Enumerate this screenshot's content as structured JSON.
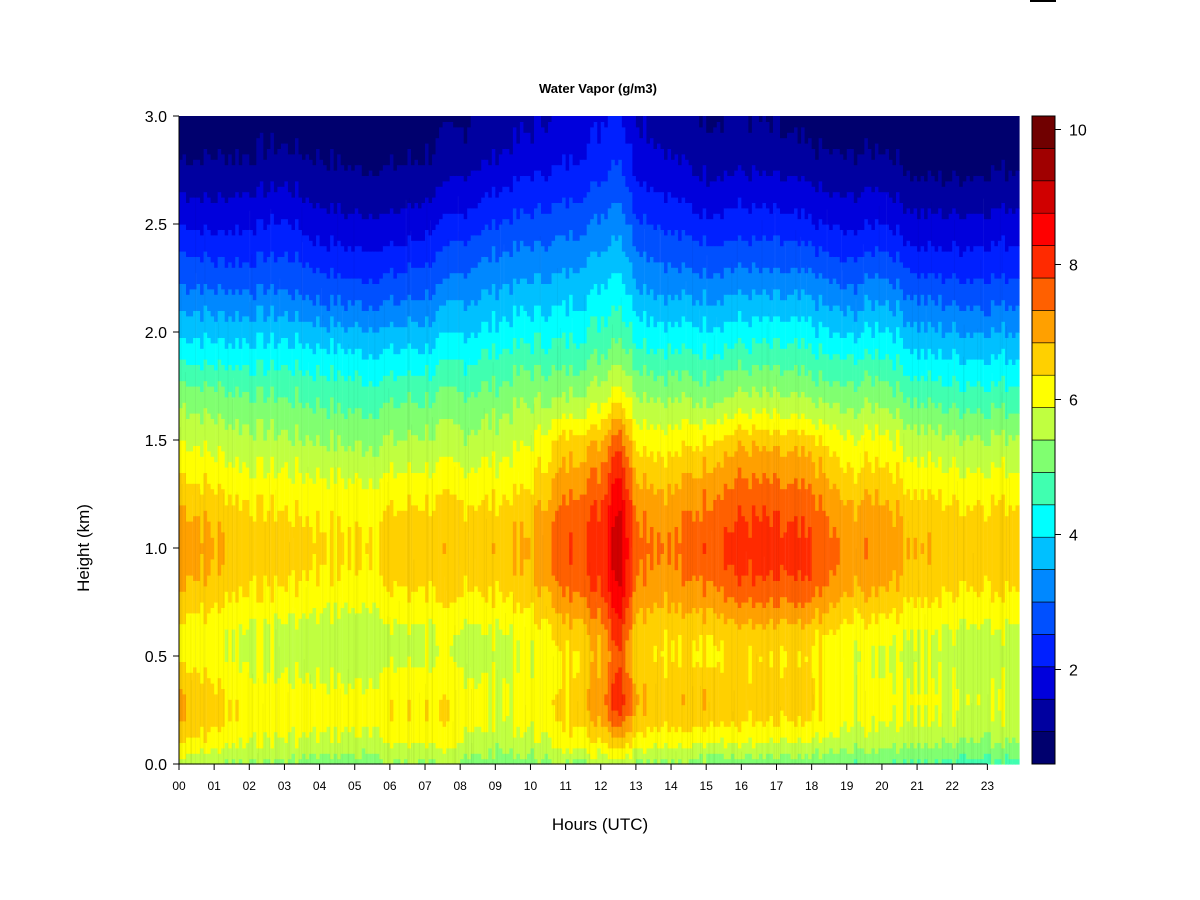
{
  "chart_data": {
    "type": "heatmap",
    "title": "Water Vapor (g/m3)",
    "xlabel": "Hours (UTC)",
    "ylabel": "Height (km)",
    "xlim": [
      0,
      23.9
    ],
    "ylim": [
      0.0,
      3.0
    ],
    "x_ticks": [
      "00",
      "01",
      "02",
      "03",
      "04",
      "05",
      "06",
      "07",
      "08",
      "09",
      "10",
      "11",
      "12",
      "13",
      "14",
      "15",
      "16",
      "17",
      "18",
      "19",
      "20",
      "21",
      "22",
      "23"
    ],
    "y_ticks": [
      "0.0",
      "0.5",
      "1.0",
      "1.5",
      "2.0",
      "2.5",
      "3.0"
    ],
    "colorbar": {
      "range": [
        0.6,
        10.2
      ],
      "ticks": [
        "2",
        "4",
        "6",
        "8",
        "10"
      ],
      "levels": [
        "#00006e",
        "#0000a0",
        "#0000dc",
        "#0020ff",
        "#0050ff",
        "#0088ff",
        "#00c0ff",
        "#00ffff",
        "#40ffb0",
        "#80ff70",
        "#c0ff40",
        "#ffff00",
        "#ffd000",
        "#ffa000",
        "#ff6000",
        "#ff2a00",
        "#ff0000",
        "#d00000",
        "#a00000",
        "#700000"
      ]
    },
    "heights_km": [
      0.0,
      0.1,
      0.2,
      0.3,
      0.4,
      0.5,
      0.6,
      0.7,
      0.8,
      0.9,
      1.0,
      1.1,
      1.2,
      1.3,
      1.4,
      1.5,
      1.6,
      1.7,
      1.8,
      1.9,
      2.0,
      2.1,
      2.2,
      2.3,
      2.4,
      2.5,
      2.6,
      2.7,
      2.8,
      2.9,
      3.0
    ],
    "profiles": [
      {
        "hour": 0,
        "values": [
          5.6,
          6.4,
          6.9,
          7.0,
          6.7,
          6.3,
          6.2,
          6.5,
          6.9,
          7.1,
          7.2,
          7.1,
          6.9,
          6.5,
          6.2,
          5.9,
          5.6,
          5.3,
          4.8,
          4.3,
          3.9,
          3.5,
          3.1,
          2.8,
          2.4,
          2.0,
          1.7,
          1.4,
          1.1,
          0.9,
          0.8
        ]
      },
      {
        "hour": 1,
        "values": [
          5.4,
          6.1,
          6.5,
          6.5,
          6.3,
          6.0,
          6.0,
          6.3,
          6.6,
          6.8,
          6.9,
          6.8,
          6.6,
          6.3,
          6.0,
          5.7,
          5.4,
          5.1,
          4.7,
          4.2,
          3.8,
          3.4,
          3.0,
          2.6,
          2.3,
          1.9,
          1.6,
          1.3,
          1.1,
          0.9,
          0.8
        ]
      },
      {
        "hour": 2,
        "values": [
          5.4,
          5.9,
          6.2,
          6.2,
          6.0,
          5.8,
          5.8,
          6.1,
          6.4,
          6.6,
          6.7,
          6.6,
          6.4,
          6.1,
          5.8,
          5.6,
          5.3,
          5.0,
          4.6,
          4.2,
          3.8,
          3.4,
          3.0,
          2.6,
          2.3,
          2.0,
          1.7,
          1.4,
          1.1,
          1.0,
          0.9
        ]
      },
      {
        "hour": 3,
        "values": [
          5.3,
          5.8,
          6.1,
          6.1,
          5.9,
          5.7,
          5.7,
          6.0,
          6.3,
          6.5,
          6.6,
          6.5,
          6.3,
          6.0,
          5.8,
          5.5,
          5.2,
          4.9,
          4.6,
          4.2,
          3.8,
          3.4,
          3.0,
          2.7,
          2.4,
          2.1,
          1.8,
          1.5,
          1.2,
          1.0,
          0.9
        ]
      },
      {
        "hour": 4,
        "values": [
          5.2,
          5.8,
          6.1,
          6.1,
          5.9,
          5.6,
          5.6,
          5.9,
          6.2,
          6.4,
          6.5,
          6.4,
          6.2,
          6.0,
          5.7,
          5.4,
          5.1,
          4.8,
          4.5,
          4.1,
          3.7,
          3.2,
          2.8,
          2.5,
          2.1,
          1.8,
          1.5,
          1.3,
          1.1,
          0.9,
          0.8
        ]
      },
      {
        "hour": 5,
        "values": [
          5.1,
          5.7,
          6.0,
          6.0,
          5.8,
          5.5,
          5.5,
          5.8,
          6.1,
          6.3,
          6.4,
          6.3,
          6.1,
          5.9,
          5.6,
          5.3,
          5.0,
          4.7,
          4.4,
          4.0,
          3.6,
          3.1,
          2.7,
          2.3,
          2.0,
          1.7,
          1.4,
          1.2,
          1.0,
          0.9,
          0.8
        ]
      },
      {
        "hour": 6,
        "values": [
          5.3,
          5.9,
          6.2,
          6.2,
          6.0,
          5.7,
          5.7,
          6.0,
          6.3,
          6.5,
          6.6,
          6.5,
          6.3,
          6.0,
          5.7,
          5.4,
          5.1,
          4.8,
          4.4,
          4.0,
          3.6,
          3.1,
          2.7,
          2.4,
          2.0,
          1.7,
          1.4,
          1.2,
          1.0,
          0.9,
          0.8
        ]
      },
      {
        "hour": 7,
        "values": [
          5.4,
          6.0,
          6.3,
          6.3,
          6.1,
          5.8,
          5.8,
          6.1,
          6.4,
          6.6,
          6.7,
          6.6,
          6.4,
          6.1,
          5.8,
          5.5,
          5.2,
          4.9,
          4.5,
          4.1,
          3.7,
          3.3,
          2.9,
          2.6,
          2.2,
          1.9,
          1.6,
          1.3,
          1.1,
          1.0,
          0.9
        ]
      },
      {
        "hour": 8,
        "values": [
          5.3,
          5.9,
          6.2,
          6.2,
          6.0,
          5.7,
          5.8,
          6.1,
          6.4,
          6.6,
          6.7,
          6.6,
          6.4,
          6.1,
          5.8,
          5.5,
          5.3,
          5.0,
          4.6,
          4.3,
          3.9,
          3.6,
          3.2,
          2.9,
          2.6,
          2.2,
          1.9,
          1.6,
          1.3,
          1.1,
          1.0
        ]
      },
      {
        "hour": 9,
        "values": [
          5.1,
          5.6,
          5.8,
          5.9,
          5.8,
          5.7,
          5.8,
          6.1,
          6.4,
          6.6,
          6.7,
          6.6,
          6.4,
          6.1,
          5.9,
          5.6,
          5.4,
          5.1,
          4.8,
          4.5,
          4.1,
          3.8,
          3.5,
          3.2,
          2.9,
          2.5,
          2.2,
          1.9,
          1.6,
          1.4,
          1.3
        ]
      },
      {
        "hour": 10,
        "values": [
          5.2,
          5.7,
          6.0,
          6.1,
          6.0,
          5.9,
          6.0,
          6.3,
          6.6,
          6.8,
          6.9,
          6.8,
          6.6,
          6.3,
          6.1,
          5.8,
          5.6,
          5.3,
          5.0,
          4.6,
          4.3,
          3.9,
          3.6,
          3.3,
          3.0,
          2.7,
          2.4,
          2.1,
          1.8,
          1.6,
          1.5
        ]
      },
      {
        "hour": 11,
        "values": [
          5.4,
          6.1,
          6.4,
          6.4,
          6.3,
          6.3,
          6.5,
          6.9,
          7.3,
          7.6,
          7.7,
          7.6,
          7.4,
          7.1,
          6.8,
          6.5,
          5.9,
          5.4,
          5.0,
          4.6,
          4.3,
          4.0,
          3.7,
          3.4,
          3.1,
          2.8,
          2.5,
          2.2,
          2.0,
          1.8,
          1.7
        ]
      },
      {
        "hour": 12,
        "values": [
          5.5,
          6.3,
          6.9,
          7.2,
          7.0,
          6.8,
          7.0,
          7.4,
          7.8,
          8.0,
          8.1,
          8.0,
          7.8,
          7.5,
          7.2,
          6.8,
          6.2,
          5.7,
          5.3,
          4.9,
          4.6,
          4.3,
          4.0,
          3.7,
          3.4,
          3.1,
          2.8,
          2.5,
          2.3,
          2.1,
          2.0
        ]
      },
      {
        "hour": 12.5,
        "values": [
          5.8,
          6.8,
          7.8,
          8.4,
          8.1,
          7.9,
          8.2,
          8.6,
          8.9,
          9.1,
          9.2,
          9.1,
          8.9,
          8.6,
          8.3,
          7.8,
          7.1,
          6.3,
          5.8,
          5.3,
          4.9,
          4.6,
          4.3,
          4.0,
          3.7,
          3.4,
          3.1,
          2.9,
          2.6,
          2.4,
          2.2
        ]
      },
      {
        "hour": 13,
        "values": [
          5.4,
          6.2,
          6.8,
          7.0,
          6.8,
          6.6,
          6.7,
          7.0,
          7.3,
          7.5,
          7.6,
          7.5,
          7.3,
          7.0,
          6.7,
          6.3,
          5.9,
          5.5,
          5.1,
          4.7,
          4.3,
          4.0,
          3.6,
          3.3,
          3.0,
          2.7,
          2.4,
          2.1,
          1.9,
          1.7,
          1.6
        ]
      },
      {
        "hour": 14,
        "values": [
          5.3,
          6.0,
          6.5,
          6.7,
          6.5,
          6.3,
          6.4,
          6.7,
          7.0,
          7.2,
          7.3,
          7.2,
          7.0,
          6.7,
          6.4,
          6.1,
          5.7,
          5.3,
          4.9,
          4.5,
          4.1,
          3.7,
          3.3,
          3.0,
          2.7,
          2.4,
          2.1,
          1.8,
          1.6,
          1.4,
          1.3
        ]
      },
      {
        "hour": 15,
        "values": [
          5.2,
          6.0,
          6.6,
          6.8,
          6.6,
          6.4,
          6.5,
          6.9,
          7.3,
          7.6,
          7.7,
          7.6,
          7.4,
          7.1,
          6.8,
          6.4,
          5.8,
          5.3,
          4.9,
          4.5,
          4.1,
          3.7,
          3.3,
          2.9,
          2.6,
          2.2,
          1.9,
          1.6,
          1.4,
          1.2,
          1.1
        ]
      },
      {
        "hour": 16,
        "values": [
          5.1,
          5.9,
          6.4,
          6.6,
          6.5,
          6.4,
          6.6,
          7.1,
          7.6,
          7.9,
          8.0,
          7.9,
          7.7,
          7.4,
          7.1,
          6.7,
          6.0,
          5.5,
          5.1,
          4.6,
          4.2,
          3.8,
          3.4,
          3.0,
          2.6,
          2.3,
          2.0,
          1.7,
          1.4,
          1.2,
          1.1
        ]
      },
      {
        "hour": 17,
        "values": [
          5.0,
          5.8,
          6.3,
          6.5,
          6.4,
          6.3,
          6.5,
          7.0,
          7.5,
          7.8,
          7.9,
          7.8,
          7.6,
          7.3,
          7.0,
          6.6,
          5.9,
          5.4,
          5.0,
          4.6,
          4.2,
          3.7,
          3.3,
          2.9,
          2.6,
          2.2,
          1.9,
          1.6,
          1.3,
          1.1,
          1.0
        ]
      },
      {
        "hour": 18,
        "values": [
          5.0,
          5.8,
          6.3,
          6.5,
          6.4,
          6.3,
          6.5,
          7.0,
          7.5,
          7.8,
          7.8,
          7.7,
          7.5,
          7.2,
          6.9,
          6.5,
          5.8,
          5.3,
          4.9,
          4.5,
          4.1,
          3.7,
          3.3,
          2.9,
          2.5,
          2.1,
          1.8,
          1.5,
          1.2,
          1.0,
          0.9
        ]
      },
      {
        "hour": 19,
        "values": [
          5.0,
          5.6,
          5.9,
          6.0,
          6.0,
          5.9,
          6.1,
          6.4,
          6.8,
          7.0,
          7.1,
          7.0,
          6.8,
          6.5,
          6.2,
          5.9,
          5.5,
          5.1,
          4.7,
          4.3,
          3.8,
          3.4,
          3.0,
          2.6,
          2.2,
          1.9,
          1.6,
          1.3,
          1.1,
          0.9,
          0.8
        ]
      },
      {
        "hour": 20,
        "values": [
          5.0,
          5.6,
          6.0,
          6.1,
          6.0,
          5.9,
          6.1,
          6.5,
          6.9,
          7.2,
          7.3,
          7.2,
          7.0,
          6.7,
          6.4,
          6.1,
          5.7,
          5.3,
          4.9,
          4.5,
          4.1,
          3.7,
          3.3,
          2.9,
          2.5,
          2.1,
          1.8,
          1.5,
          1.2,
          1.0,
          0.9
        ]
      },
      {
        "hour": 21,
        "values": [
          4.9,
          5.5,
          5.9,
          6.0,
          5.9,
          5.8,
          5.9,
          6.2,
          6.5,
          6.7,
          6.8,
          6.7,
          6.5,
          6.2,
          5.9,
          5.6,
          5.2,
          4.8,
          4.4,
          4.0,
          3.6,
          3.2,
          2.8,
          2.4,
          2.0,
          1.7,
          1.4,
          1.1,
          0.9,
          0.8,
          0.7
        ]
      },
      {
        "hour": 22,
        "values": [
          4.8,
          5.4,
          5.8,
          5.9,
          5.8,
          5.7,
          5.8,
          6.1,
          6.4,
          6.6,
          6.7,
          6.6,
          6.4,
          6.1,
          5.8,
          5.5,
          5.1,
          4.7,
          4.3,
          3.9,
          3.5,
          3.1,
          2.7,
          2.3,
          2.0,
          1.7,
          1.4,
          1.1,
          0.9,
          0.8,
          0.7
        ]
      },
      {
        "hour": 23.9,
        "values": [
          4.8,
          5.4,
          5.8,
          5.9,
          5.8,
          5.7,
          5.8,
          6.1,
          6.4,
          6.6,
          6.7,
          6.6,
          6.4,
          6.1,
          5.8,
          5.5,
          5.1,
          4.7,
          4.3,
          3.9,
          3.5,
          3.1,
          2.7,
          2.4,
          2.1,
          1.8,
          1.5,
          1.2,
          1.0,
          0.8,
          0.7
        ]
      }
    ]
  }
}
